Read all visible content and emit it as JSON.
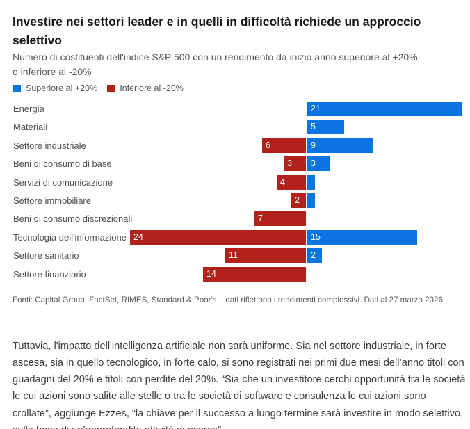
{
  "header": {
    "title": "Investire nei settori leader e in quelli in difficoltà richiede un approccio selettivo",
    "subtitle": "Numero di costituenti dell'indice S&P 500 con un rendimento da inizio anno superiore al +20% o inferiore al -20%"
  },
  "legend": [
    {
      "label": "Superiore al +20%",
      "color": "#0b74e0"
    },
    {
      "label": "Inferiore al -20%",
      "color": "#b0221a"
    }
  ],
  "colors": {
    "positive": "#0b74e0",
    "negative": "#b0221a",
    "bar_value_text": "#ffffff"
  },
  "chart_data": {
    "type": "bar",
    "orientation": "horizontal_diverging",
    "title": "Numero di costituenti dell'indice S&P 500 con un rendimento da inizio anno superiore al +20% o inferiore al -20%",
    "categories": [
      "Energia",
      "Materiali",
      "Settore industriale",
      "Beni di consumo di base",
      "Servizi di comunicazione",
      "Settore immobiliare",
      "Beni di consumo discrezionali",
      "Tecnologia dell'informazione",
      "Settore sanitario",
      "Settore finanziario"
    ],
    "series": [
      {
        "name": "Superiore al +20%",
        "color": "#0b74e0",
        "direction": "right",
        "values": [
          21,
          5,
          9,
          3,
          1,
          1,
          0,
          15,
          2,
          0
        ]
      },
      {
        "name": "Inferiore al -20%",
        "color": "#b0221a",
        "direction": "left",
        "values": [
          0,
          0,
          6,
          3,
          4,
          2,
          7,
          24,
          11,
          14
        ]
      }
    ],
    "value_labels": "shown inside bar left edge, hidden when value < 2",
    "axis": {
      "zero_position": "diverging center",
      "left_max": 24,
      "right_max": 21,
      "grid": false
    },
    "legend_position": "top-left"
  },
  "source_note": "Fonti: Capital Group, FactSet, RIMES, Standard & Poor's. I dati riflettono i rendimenti complessivi. Dati al 27 marzo 2026.",
  "body_paragraph": "Tuttavia, l'impatto dell'intelligenza artificiale non sarà uniforme. Sia nel settore industriale, in forte ascesa, sia in quello tecnologico, in forte calo, si sono registrati nei primi due mesi dell’anno titoli con guadagni del 20% e titoli con perdite del 20%. “Sia che un investitore cerchi opportunità tra le società le cui azioni sono salite alle stelle o tra le società di software e consulenza le cui azioni sono crollate”, aggiunge Ezzes, “la chiave per il successo a lungo termine sarà investire in modo selettivo, sulla base di un’approfondita attività di ricerca”."
}
